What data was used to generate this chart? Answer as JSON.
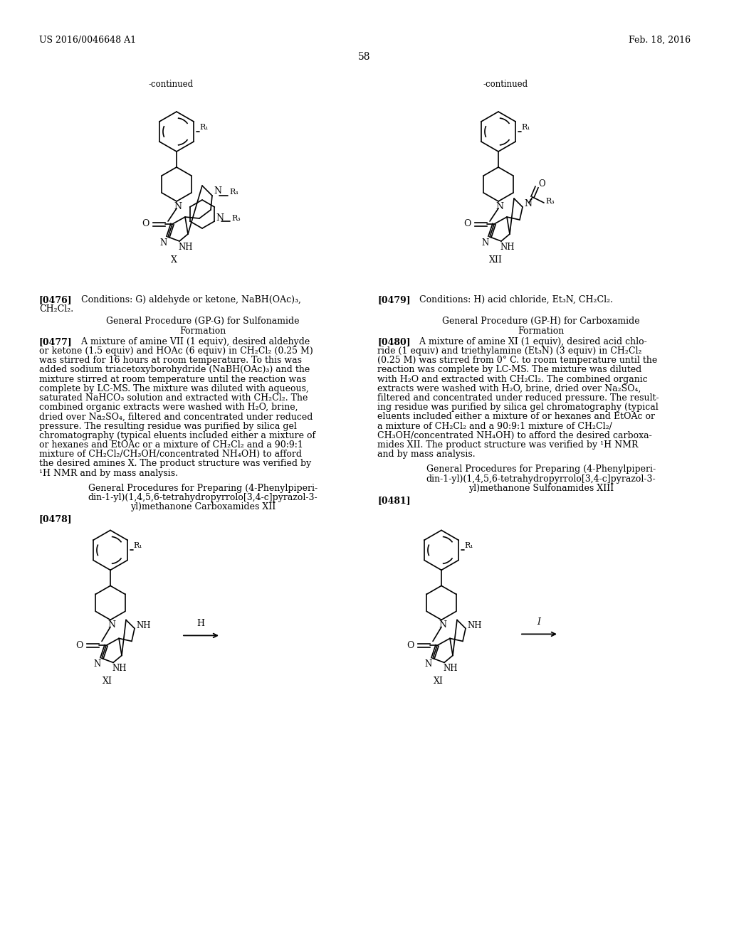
{
  "background_color": "#ffffff",
  "page_number": "58",
  "header_left": "US 2016/0046648 A1",
  "header_right": "Feb. 18, 2016",
  "left_continued": "-continued",
  "right_continued": "-continued",
  "label_X": "X",
  "label_XII": "XII",
  "label_XI": "XI",
  "para_0476_bold": "[0476]",
  "para_0476_text": "   Conditions: G) aldehyde or ketone, NaBH(OAc)₃,\nCH₂Cl₂.",
  "gp_g_title1": "General Procedure (GP-G) for Sulfonamide",
  "gp_g_title2": "Formation",
  "para_0477_bold": "[0477]",
  "para_0477_lines": [
    "   A mixture of amine VII (1 equiv), desired aldehyde",
    "or ketone (1.5 equiv) and HOAc (6 equiv) in CH₂Cl₂ (0.25 M)",
    "was stirred for 16 hours at room temperature. To this was",
    "added sodium triacetoxyborohydride (NaBH(OAc)₃) and the",
    "mixture stirred at room temperature until the reaction was",
    "complete by LC-MS. The mixture was diluted with aqueous,",
    "saturated NaHCO₃ solution and extracted with CH₂Cl₂. The",
    "combined organic extracts were washed with H₂O, brine,",
    "dried over Na₂SO₄, filtered and concentrated under reduced",
    "pressure. The resulting residue was purified by silica gel",
    "chromatography (typical eluents included either a mixture of",
    "or hexanes and EtOAc or a mixture of CH₂Cl₂ and a 90:9:1",
    "mixture of CH₂Cl₂/CH₃OH/concentrated NH₄OH) to afford",
    "the desired amines X. The product structure was verified by",
    "¹H NMR and by mass analysis."
  ],
  "gp_xii_title1": "General Procedures for Preparing (4-Phenylpiperi-",
  "gp_xii_title2": "din-1-yl)(1,4,5,6-tetrahydropyrrolo[3,4-c]pyrazol-3-",
  "gp_xii_title3": "yl)methanone Carboxamides XII",
  "para_0478_bold": "[0478]",
  "para_0479_bold": "[0479]",
  "para_0479_text": "   Conditions: H) acid chloride, Et₃N, CH₂Cl₂.",
  "gp_h_title1": "General Procedure (GP-H) for Carboxamide",
  "gp_h_title2": "Formation",
  "para_0480_bold": "[0480]",
  "para_0480_lines": [
    "   A mixture of amine XI (1 equiv), desired acid chlo-",
    "ride (1 equiv) and triethylamine (Et₃N) (3 equiv) in CH₂Cl₂",
    "(0.25 M) was stirred from 0° C. to room temperature until the",
    "reaction was complete by LC-MS. The mixture was diluted",
    "with H₂O and extracted with CH₂Cl₂. The combined organic",
    "extracts were washed with H₂O, brine, dried over Na₂SO₄,",
    "filtered and concentrated under reduced pressure. The result-",
    "ing residue was purified by silica gel chromatography (typical",
    "eluents included either a mixture of or hexanes and EtOAc or",
    "a mixture of CH₂Cl₂ and a 90:9:1 mixture of CH₂Cl₂/",
    "CH₃OH/concentrated NH₄OH) to afford the desired carboxa-",
    "mides XII. The product structure was verified by ¹H NMR",
    "and by mass analysis."
  ],
  "gp_xiii_title1": "General Procedures for Preparing (4-Phenylpiperi-",
  "gp_xiii_title2": "din-1-yl)(1,4,5,6-tetrahydropyrrolo[3,4-c]pyrazol-3-",
  "gp_xiii_title3": "yl)methanone Sulfonamides XIII",
  "para_0481_bold": "[0481]"
}
